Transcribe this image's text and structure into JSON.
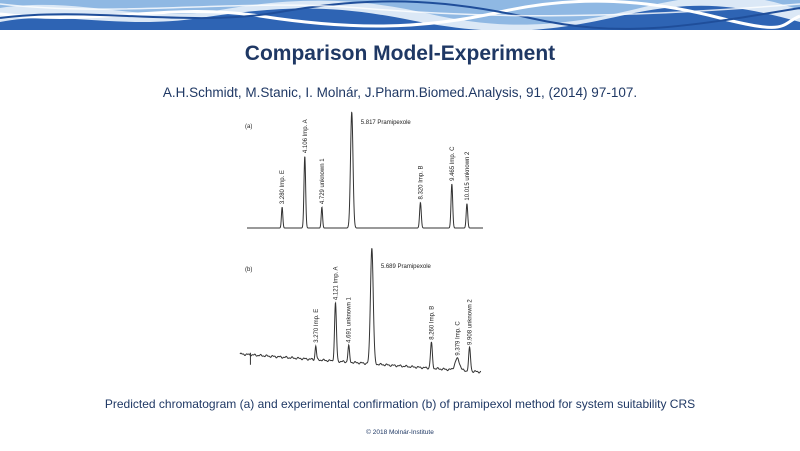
{
  "slide": {
    "title": "Comparison Model-Experiment",
    "citation": "A.H.Schmidt, M.Stanic, I. Molnár, J.Pharm.Biomed.Analysis, 91, (2014) 97-107.",
    "caption": "Predicted chromatogram (a) and experimental confirmation (b) of pramipexol method for system suitability CRS",
    "footer": "© 2018 Molnár-Institute"
  },
  "colors": {
    "title": "#1f3864",
    "banner_light": "#8fb8e3",
    "banner_dark": "#1f4e9a",
    "trace": "#333333"
  },
  "chart_data": [
    {
      "type": "line",
      "panel_label": "(a)",
      "x_range": [
        2.0,
        10.6
      ],
      "y_range": [
        0,
        1
      ],
      "baseline": "flat",
      "peaks": [
        {
          "rt": 3.28,
          "label": "3.280 Imp. E",
          "height": 0.18,
          "width": 0.025
        },
        {
          "rt": 4.106,
          "label": "4.106 Imp. A",
          "height": 0.62,
          "width": 0.03
        },
        {
          "rt": 4.729,
          "label": "4.729 unknown 1",
          "height": 0.18,
          "width": 0.025
        },
        {
          "rt": 5.817,
          "label": "5.817 Pramipexole",
          "height": 1.0,
          "width": 0.045,
          "offscale": true
        },
        {
          "rt": 8.32,
          "label": "8.320 Imp. B",
          "height": 0.22,
          "width": 0.03
        },
        {
          "rt": 9.465,
          "label": "9.465 Imp. C",
          "height": 0.38,
          "width": 0.03
        },
        {
          "rt": 10.015,
          "label": "10.015 unknown 2",
          "height": 0.21,
          "width": 0.028
        }
      ]
    },
    {
      "type": "line",
      "panel_label": "(b)",
      "x_range": [
        0.0,
        10.4
      ],
      "y_range": [
        0,
        1
      ],
      "baseline": "drifting",
      "peaks": [
        {
          "rt": 3.27,
          "label": "3.270 Imp. E",
          "height": 0.12,
          "width": 0.03
        },
        {
          "rt": 4.121,
          "label": "4.121 Imp. A",
          "height": 0.5,
          "width": 0.04
        },
        {
          "rt": 4.691,
          "label": "4.691 unknown 1",
          "height": 0.14,
          "width": 0.035
        },
        {
          "rt": 5.689,
          "label": "5.689 Pramipexole",
          "height": 1.0,
          "width": 0.06,
          "offscale": true
        },
        {
          "rt": 8.26,
          "label": "8.260 Imp. B",
          "height": 0.22,
          "width": 0.04
        },
        {
          "rt": 9.379,
          "label": "9.379 Imp. C",
          "height": 0.1,
          "width": 0.1
        },
        {
          "rt": 9.908,
          "label": "9.908 unknown 2",
          "height": 0.2,
          "width": 0.04
        }
      ]
    }
  ]
}
